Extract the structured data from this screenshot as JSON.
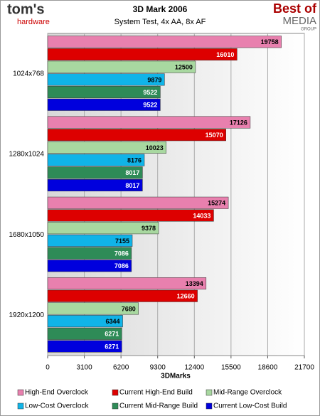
{
  "logos": {
    "left": [
      "tom's",
      "hardware"
    ],
    "right": [
      "Best of",
      "MEDIA",
      "GROUP"
    ]
  },
  "chart_data": {
    "type": "hbar",
    "title": "3D Mark 2006",
    "subtitle": "System Test, 4x AA, 8x AF",
    "x_label": "3DMarks",
    "categories": [
      "1024x768",
      "1280x1024",
      "1680x1050",
      "1920x1200"
    ],
    "series": [
      {
        "name": "High-End Overclock",
        "color": "#e880ae",
        "label_color": "#000",
        "values": [
          19758,
          17126,
          15274,
          13394
        ]
      },
      {
        "name": "Current High-End Build",
        "color": "#dd0000",
        "label_color": "#fff",
        "values": [
          16010,
          15070,
          14033,
          12660
        ]
      },
      {
        "name": "Mid-Range Overclock",
        "color": "#a8d8a0",
        "label_color": "#000",
        "values": [
          12500,
          10023,
          9378,
          7680
        ]
      },
      {
        "name": "Low-Cost Overclock",
        "color": "#10b4e8",
        "label_color": "#000",
        "values": [
          9879,
          8176,
          7155,
          6344
        ]
      },
      {
        "name": "Current Mid-Range Build",
        "color": "#2e8b57",
        "label_color": "#fff",
        "values": [
          9522,
          8017,
          7086,
          6271
        ]
      },
      {
        "name": "Current Low-Cost Build",
        "color": "#0000dd",
        "label_color": "#fff",
        "values": [
          9522,
          8017,
          7086,
          6271
        ]
      }
    ],
    "xlim": [
      0,
      21700
    ],
    "xticks": [
      0,
      3100,
      6200,
      9300,
      12400,
      15500,
      18600,
      21700
    ],
    "grid": true
  }
}
